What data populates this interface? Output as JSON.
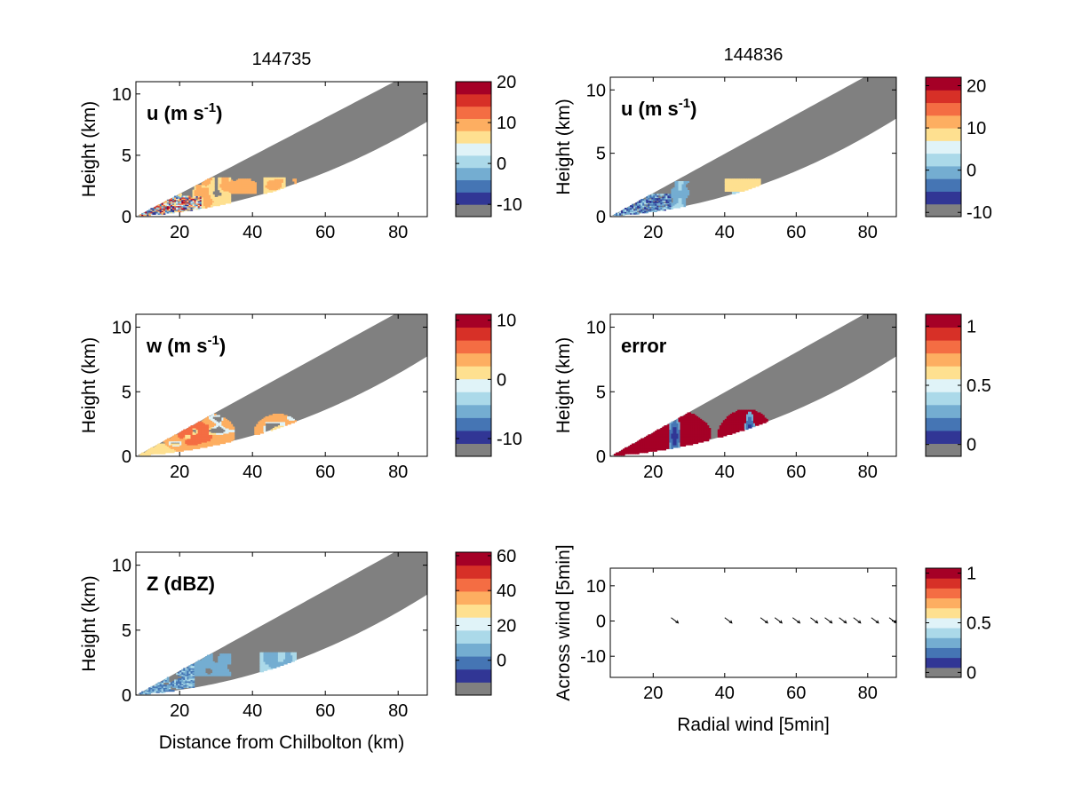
{
  "chart_data": {
    "type": "heatmap",
    "colormap": [
      "#808080",
      "#313695",
      "#4575b4",
      "#74add1",
      "#abd9e9",
      "#e0f3f8",
      "#fee090",
      "#fdae61",
      "#f46d43",
      "#d73027",
      "#a50026"
    ],
    "colors": {
      "masked": "#808080",
      "background": "#ffffff",
      "axis": "#000000"
    },
    "panels": [
      {
        "id": "u-left",
        "title": "144735",
        "annotation": "u (m s",
        "annotation_sup": "-1",
        "annotation_end": ")",
        "xlabel": "",
        "ylabel": "Height (km)",
        "xlim": [
          8,
          88
        ],
        "ylim": [
          0,
          11
        ],
        "xticks": [
          "20",
          "40",
          "60",
          "80"
        ],
        "yticks": [
          "0",
          "5",
          "10"
        ],
        "clim": [
          -13,
          20
        ],
        "cbticks": [
          "-10",
          "0",
          "10",
          "20"
        ],
        "field": "u1"
      },
      {
        "id": "u-right",
        "title": "144836",
        "annotation": "u (m s",
        "annotation_sup": "-1",
        "annotation_end": ")",
        "xlabel": "",
        "ylabel": "Height (km)",
        "xlim": [
          8,
          88
        ],
        "ylim": [
          0,
          11
        ],
        "xticks": [
          "20",
          "40",
          "60",
          "80"
        ],
        "yticks": [
          "0",
          "5",
          "10"
        ],
        "clim": [
          -11,
          22
        ],
        "cbticks": [
          "-10",
          "0",
          "10",
          "20"
        ],
        "field": "u2"
      },
      {
        "id": "w",
        "title": "",
        "annotation": "w (m s",
        "annotation_sup": "-1",
        "annotation_end": ")",
        "xlabel": "",
        "ylabel": "Height (km)",
        "xlim": [
          8,
          88
        ],
        "ylim": [
          0,
          11
        ],
        "xticks": [
          "20",
          "40",
          "60",
          "80"
        ],
        "yticks": [
          "0",
          "5",
          "10"
        ],
        "clim": [
          -13,
          11
        ],
        "cbticks": [
          "-10",
          "0",
          "10"
        ],
        "field": "w"
      },
      {
        "id": "error",
        "title": "",
        "annotation": "error",
        "annotation_sup": "",
        "annotation_end": "",
        "xlabel": "",
        "ylabel": "Height (km)",
        "xlim": [
          8,
          88
        ],
        "ylim": [
          0,
          11
        ],
        "xticks": [
          "20",
          "40",
          "60",
          "80"
        ],
        "yticks": [
          "0",
          "5",
          "10"
        ],
        "clim": [
          -0.1,
          1.1
        ],
        "cbticks": [
          "0",
          "0.5",
          "1"
        ],
        "field": "err"
      },
      {
        "id": "z",
        "title": "",
        "annotation": "Z (dBZ)",
        "annotation_sup": "",
        "annotation_end": "",
        "xlabel": "Distance from Chilbolton (km)",
        "ylabel": "Height (km)",
        "xlim": [
          8,
          88
        ],
        "ylim": [
          0,
          11
        ],
        "xticks": [
          "20",
          "40",
          "60",
          "80"
        ],
        "yticks": [
          "0",
          "5",
          "10"
        ],
        "clim": [
          -20,
          62
        ],
        "cbticks": [
          "0",
          "20",
          "40",
          "60"
        ],
        "field": "z"
      },
      {
        "id": "quiver",
        "title": "",
        "annotation": "",
        "annotation_sup": "",
        "annotation_end": "",
        "xlabel": "Radial wind [5min]",
        "ylabel": "Across wind [5min]",
        "xlim": [
          8,
          88
        ],
        "ylim": [
          -16,
          15
        ],
        "xticks": [
          "20",
          "40",
          "60",
          "80"
        ],
        "yticks": [
          "-10",
          "0",
          "10"
        ],
        "clim": [
          -0.05,
          1.05
        ],
        "cbticks": [
          "0",
          "0.5",
          "1"
        ],
        "field": "quiver",
        "vectors": [
          {
            "x": 26,
            "y": 0.2
          },
          {
            "x": 41,
            "y": 0.2
          },
          {
            "x": 51,
            "y": 0.2
          },
          {
            "x": 55,
            "y": 0.2
          },
          {
            "x": 60,
            "y": 0.2
          },
          {
            "x": 65,
            "y": 0.2
          },
          {
            "x": 69,
            "y": 0.2
          },
          {
            "x": 73,
            "y": 0.2
          },
          {
            "x": 77,
            "y": 0.2
          },
          {
            "x": 82,
            "y": 0.2
          },
          {
            "x": 87,
            "y": 0.2
          }
        ]
      }
    ]
  }
}
